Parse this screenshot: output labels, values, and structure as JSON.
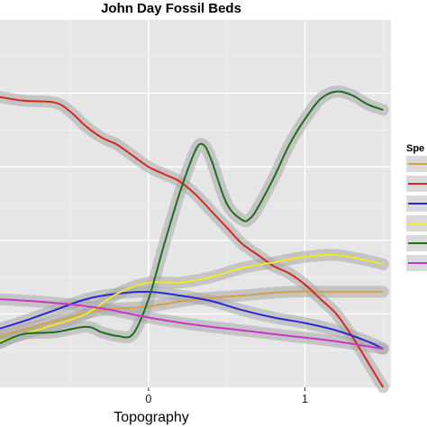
{
  "chart_data": {
    "type": "line",
    "title": "John Day Fossil Beds",
    "xlabel": "Topography",
    "ylabel": "",
    "legend_title": "Spe",
    "legend_position": "right",
    "grid": true,
    "xlim": [
      -0.95,
      1.55
    ],
    "ylim": [
      0,
      10
    ],
    "xticks": [
      0,
      1
    ],
    "xtick_labels": [
      "0",
      "1"
    ],
    "colors": {
      "panel_bg": "#e6e6e6",
      "grid_major": "#ffffff",
      "ribbon": "#a8a8a8"
    },
    "series": [
      {
        "color": "#d4a24e",
        "x": [
          -0.95,
          -0.6,
          -0.3,
          0,
          0.3,
          0.6,
          0.9,
          1.2,
          1.5
        ],
        "y": [
          1.4,
          1.8,
          2.1,
          2.2,
          2.4,
          2.5,
          2.6,
          2.6,
          2.6
        ]
      },
      {
        "color": "#d62a1e",
        "x": [
          -0.95,
          -0.8,
          -0.6,
          -0.5,
          -0.4,
          -0.3,
          -0.2,
          -0.1,
          0,
          0.1,
          0.2,
          0.3,
          0.4,
          0.5,
          0.6,
          0.7,
          0.8,
          0.9,
          1.0,
          1.1,
          1.2,
          1.3,
          1.4,
          1.5
        ],
        "y": [
          7.9,
          7.8,
          7.75,
          7.5,
          7.1,
          6.8,
          6.6,
          6.3,
          6.0,
          5.8,
          5.6,
          5.25,
          4.8,
          4.35,
          3.9,
          3.6,
          3.3,
          3.1,
          2.8,
          2.4,
          2.0,
          1.4,
          0.7,
          0.0
        ]
      },
      {
        "color": "#2a2ad4",
        "x": [
          -0.95,
          -0.8,
          -0.6,
          -0.4,
          -0.2,
          0,
          0.2,
          0.4,
          0.6,
          0.8,
          1.0,
          1.2,
          1.4,
          1.5
        ],
        "y": [
          1.6,
          1.8,
          2.1,
          2.4,
          2.55,
          2.6,
          2.5,
          2.35,
          2.1,
          1.9,
          1.75,
          1.55,
          1.25,
          1.05
        ]
      },
      {
        "color": "#f0e824",
        "x": [
          -0.95,
          -0.8,
          -0.6,
          -0.4,
          -0.2,
          0,
          0.2,
          0.4,
          0.6,
          0.8,
          1.0,
          1.2,
          1.4,
          1.5
        ],
        "y": [
          1.25,
          1.45,
          1.7,
          2.0,
          2.55,
          2.85,
          2.85,
          3.0,
          3.25,
          3.4,
          3.55,
          3.6,
          3.45,
          3.35
        ]
      },
      {
        "color": "#1e6e1e",
        "x": [
          -0.95,
          -0.8,
          -0.6,
          -0.4,
          -0.3,
          -0.2,
          -0.1,
          0,
          0.1,
          0.2,
          0.3,
          0.35,
          0.4,
          0.5,
          0.6,
          0.65,
          0.7,
          0.8,
          0.9,
          1.0,
          1.1,
          1.2,
          1.3,
          1.4,
          1.5
        ],
        "y": [
          1.2,
          1.45,
          1.5,
          1.65,
          1.5,
          1.4,
          1.45,
          2.4,
          3.9,
          5.3,
          6.45,
          6.6,
          6.2,
          5.0,
          4.55,
          4.6,
          4.9,
          5.7,
          6.6,
          7.3,
          7.85,
          8.05,
          7.95,
          7.7,
          7.55
        ]
      },
      {
        "color": "#cc33cc",
        "x": [
          -0.95,
          -0.6,
          -0.3,
          0,
          0.3,
          0.6,
          0.9,
          1.2,
          1.5
        ],
        "y": [
          2.4,
          2.3,
          2.15,
          1.9,
          1.7,
          1.55,
          1.4,
          1.25,
          1.05
        ]
      }
    ]
  }
}
